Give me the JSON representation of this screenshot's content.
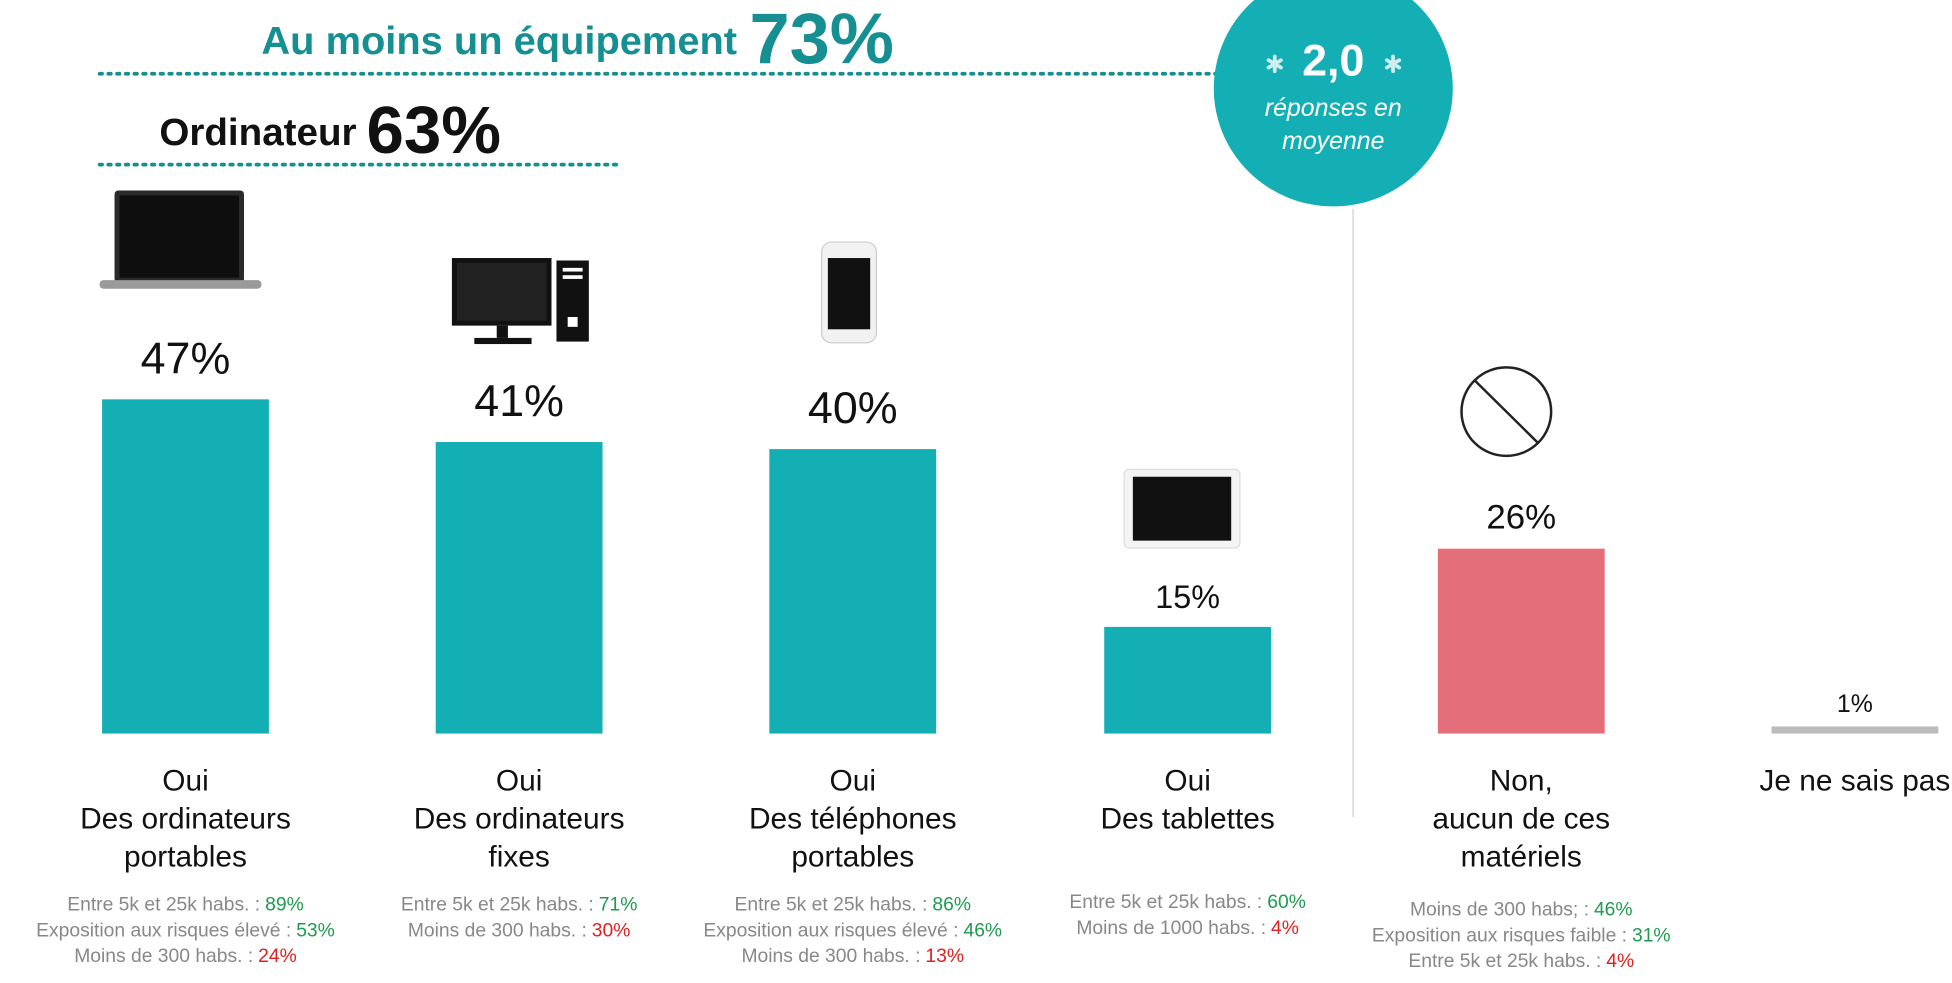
{
  "chart_data": {
    "type": "bar",
    "headline": {
      "text": "Au moins un équipement",
      "value": "73%"
    },
    "subheadline": {
      "text": "Ordinateur",
      "value": "63%"
    },
    "badge": {
      "value": "2,0",
      "text": [
        "réponses en",
        "moyenne"
      ]
    },
    "categories": [
      [
        "Oui",
        "Des ordinateurs",
        "portables"
      ],
      [
        "Oui",
        "Des ordinateurs",
        "fixes"
      ],
      [
        "Oui",
        "Des téléphones",
        "portables"
      ],
      [
        "Oui",
        "Des tablettes"
      ],
      [
        "Non,",
        "aucun de ces",
        "matériels"
      ],
      [
        "Je ne sais pas"
      ]
    ],
    "values": [
      47,
      41,
      40,
      15,
      26,
      1
    ],
    "value_labels": [
      "47%",
      "41%",
      "40%",
      "15%",
      "26%",
      "1%"
    ],
    "colors": [
      "#14afb5",
      "#14afb5",
      "#14afb5",
      "#14afb5",
      "#e56e7b",
      "#bbbbbb"
    ],
    "notes": [
      [
        {
          "text": "Entre 5k et 25k habs. :",
          "value": "89%",
          "color": "#1e9b4f"
        },
        {
          "text": "Exposition aux risques élevé :",
          "value": "53%",
          "color": "#1e9b4f"
        },
        {
          "text": "Moins de 300 habs. :",
          "value": "24%",
          "color": "#e0201e"
        }
      ],
      [
        {
          "text": "Entre 5k et 25k habs. :",
          "value": "71%",
          "color": "#1e9b4f"
        },
        {
          "text": "Moins de 300 habs. :",
          "value": "30%",
          "color": "#e0201e"
        }
      ],
      [
        {
          "text": "Entre 5k et 25k habs. :",
          "value": "86%",
          "color": "#1e9b4f"
        },
        {
          "text": "Exposition aux risques élevé :",
          "value": "46%",
          "color": "#1e9b4f"
        },
        {
          "text": "Moins de 300 habs. :",
          "value": "13%",
          "color": "#e0201e"
        }
      ],
      [
        {
          "text": "Entre 5k et 25k habs. :",
          "value": "60%",
          "color": "#1e9b4f"
        },
        {
          "text": "Moins de 1000 habs. :",
          "value": "4%",
          "color": "#e0201e"
        }
      ],
      [
        {
          "text": "Moins de 300 habs; :",
          "value": "46%",
          "color": "#1e9b4f"
        },
        {
          "text": "Exposition aux risques faible :",
          "value": "31%",
          "color": "#1e9b4f"
        },
        {
          "text": "Entre 5k et 25k habs. :",
          "value": "4%",
          "color": "#e0201e"
        }
      ],
      []
    ]
  }
}
